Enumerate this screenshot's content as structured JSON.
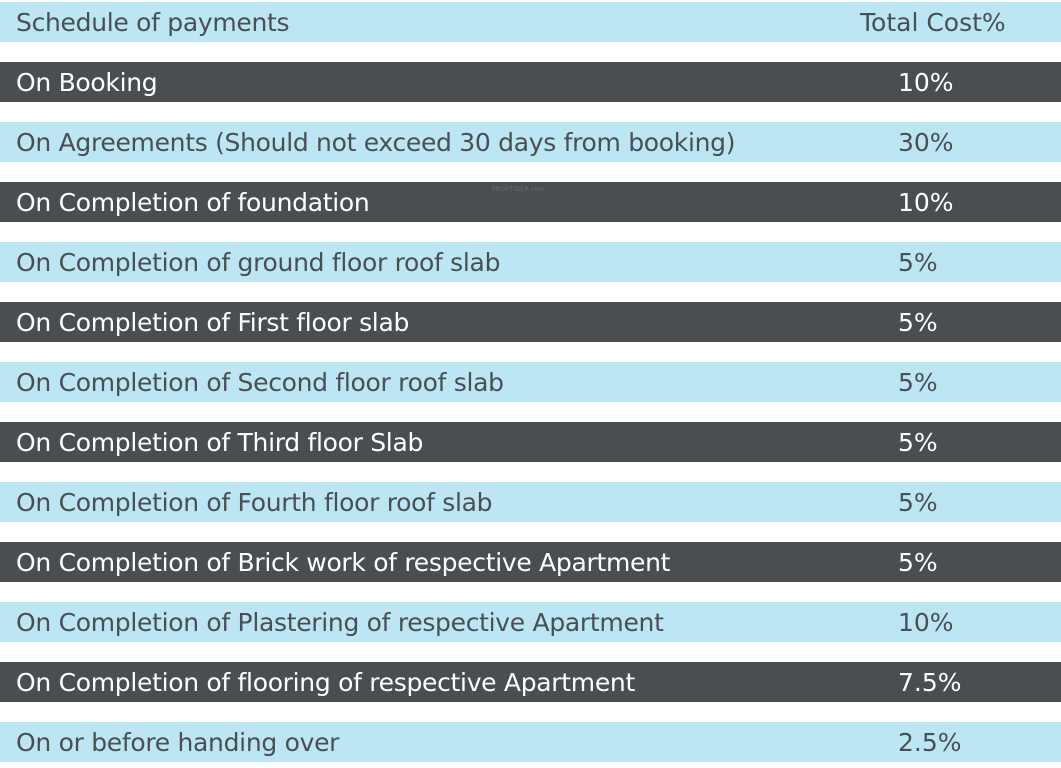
{
  "header": {
    "label": "Schedule of payments",
    "value": "Total Cost%"
  },
  "rows": [
    {
      "label": "On Booking",
      "value": "10%",
      "theme": "dark"
    },
    {
      "label": "On Agreements (Should not exceed 30 days from booking)",
      "value": "30%",
      "theme": "light"
    },
    {
      "label": "On Completion of foundation",
      "value": "10%",
      "theme": "dark"
    },
    {
      "label": "On Completion of ground floor roof slab",
      "value": "5%",
      "theme": "light"
    },
    {
      "label": "On Completion of First floor slab",
      "value": "5%",
      "theme": "dark"
    },
    {
      "label": "On Completion of Second floor roof slab",
      "value": "5%",
      "theme": "light"
    },
    {
      "label": "On Completion of Third floor Slab",
      "value": "5%",
      "theme": "dark"
    },
    {
      "label": "On Completion of Fourth floor roof slab",
      "value": "5%",
      "theme": "light"
    },
    {
      "label": "On Completion of Brick work of respective Apartment",
      "value": "5%",
      "theme": "dark"
    },
    {
      "label": "On Completion of Plastering of respective Apartment",
      "value": "10%",
      "theme": "light"
    },
    {
      "label": "On Completion of flooring of respective Apartment",
      "value": "7.5%",
      "theme": "dark"
    },
    {
      "label": "On or before handing over",
      "value": "2.5%",
      "theme": "light"
    }
  ],
  "watermark": "PROPTIGER.com",
  "colors": {
    "light_row": "#bde6f4",
    "dark_row": "#4b4e51",
    "light_text": "#4a4f53",
    "dark_text": "#ffffff"
  }
}
